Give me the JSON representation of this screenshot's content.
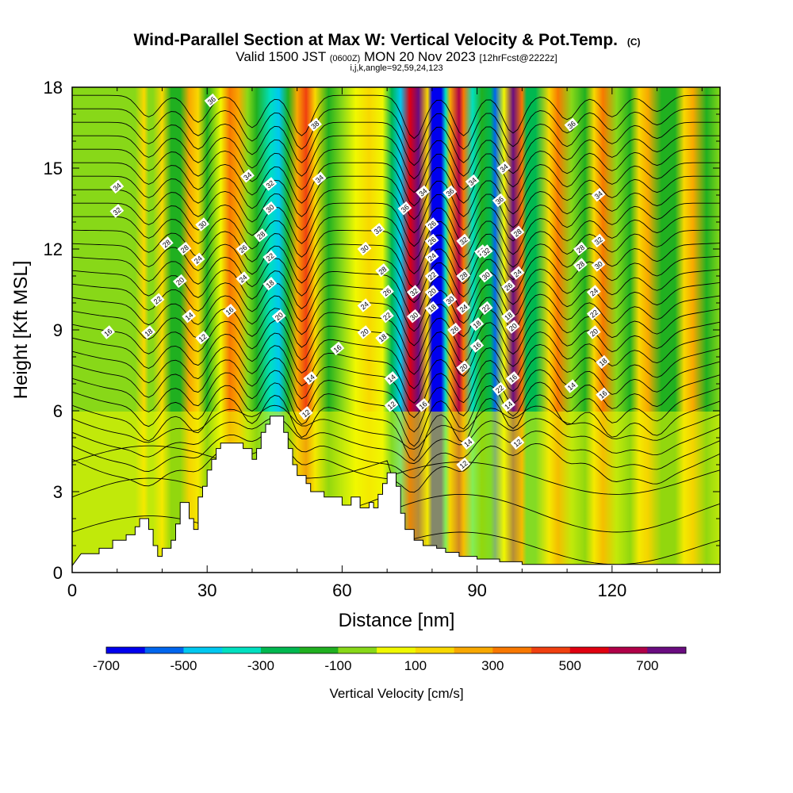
{
  "title": "Wind-Parallel Section at Max W: Vertical Velocity & Pot.Temp.",
  "title_mark": "(C)",
  "subtitle_parts": [
    "Valid 1500 JST",
    "(0600Z)",
    "MON 20 Nov 2023",
    "[12hrFcst@2222z]"
  ],
  "subtitle2": "i,j,k,angle=92,59,24,123",
  "chart_data": {
    "type": "heatmap",
    "xlabel": "Distance [nm]",
    "ylabel": "Height [Kft MSL]",
    "xlim": [
      0,
      144
    ],
    "ylim": [
      0,
      18
    ],
    "xticks": [
      0,
      30,
      60,
      90,
      120
    ],
    "yticks": [
      0,
      3,
      6,
      9,
      12,
      15,
      18
    ],
    "colorbar": {
      "label": "Vertical Velocity [cm/s]",
      "levels": [
        -700,
        -600,
        -500,
        -400,
        -300,
        -200,
        -100,
        0,
        100,
        200,
        300,
        400,
        500,
        600,
        700,
        800
      ],
      "labeled_ticks": [
        -700,
        -500,
        -300,
        -100,
        100,
        300,
        500,
        700
      ],
      "colors": [
        "#0000ee",
        "#0066ee",
        "#00c8f0",
        "#00e0c0",
        "#00b850",
        "#20b020",
        "#88d818",
        "#f0f800",
        "#f8d800",
        "#f8a800",
        "#f87800",
        "#f04010",
        "#e00010",
        "#b00048",
        "#6a0c80"
      ]
    },
    "theta_contours": {
      "variable": "Pot.Temp.",
      "labels": [
        {
          "x": 10,
          "y": 14.3,
          "t": "34"
        },
        {
          "x": 10,
          "y": 13.4,
          "t": "32"
        },
        {
          "x": 8,
          "y": 8.9,
          "t": "16"
        },
        {
          "x": 17,
          "y": 8.9,
          "t": "18"
        },
        {
          "x": 19,
          "y": 10.1,
          "t": "22"
        },
        {
          "x": 24,
          "y": 10.8,
          "t": "20"
        },
        {
          "x": 21,
          "y": 12.2,
          "t": "28"
        },
        {
          "x": 25,
          "y": 12.0,
          "t": "28"
        },
        {
          "x": 26,
          "y": 9.5,
          "t": "14"
        },
        {
          "x": 29,
          "y": 8.7,
          "t": "12"
        },
        {
          "x": 28,
          "y": 11.6,
          "t": "24"
        },
        {
          "x": 29,
          "y": 12.9,
          "t": "30"
        },
        {
          "x": 31,
          "y": 17.5,
          "t": "36"
        },
        {
          "x": 35,
          "y": 9.7,
          "t": "16"
        },
        {
          "x": 38,
          "y": 10.9,
          "t": "24"
        },
        {
          "x": 38,
          "y": 12.0,
          "t": "26"
        },
        {
          "x": 39,
          "y": 14.7,
          "t": "34"
        },
        {
          "x": 42,
          "y": 12.5,
          "t": "28"
        },
        {
          "x": 44,
          "y": 14.4,
          "t": "32"
        },
        {
          "x": 44,
          "y": 13.5,
          "t": "30"
        },
        {
          "x": 44,
          "y": 11.7,
          "t": "22"
        },
        {
          "x": 44,
          "y": 10.7,
          "t": "18"
        },
        {
          "x": 46,
          "y": 9.5,
          "t": "20"
        },
        {
          "x": 54,
          "y": 16.6,
          "t": "38"
        },
        {
          "x": 55,
          "y": 14.6,
          "t": "34"
        },
        {
          "x": 53,
          "y": 7.2,
          "t": "14"
        },
        {
          "x": 52,
          "y": 5.9,
          "t": "12"
        },
        {
          "x": 59,
          "y": 8.3,
          "t": "16"
        },
        {
          "x": 65,
          "y": 12.0,
          "t": "30"
        },
        {
          "x": 65,
          "y": 9.9,
          "t": "24"
        },
        {
          "x": 65,
          "y": 8.9,
          "t": "20"
        },
        {
          "x": 68,
          "y": 12.7,
          "t": "32"
        },
        {
          "x": 69,
          "y": 11.2,
          "t": "28"
        },
        {
          "x": 70,
          "y": 10.4,
          "t": "26"
        },
        {
          "x": 70,
          "y": 9.5,
          "t": "22"
        },
        {
          "x": 69,
          "y": 8.7,
          "t": "18"
        },
        {
          "x": 71,
          "y": 7.2,
          "t": "14"
        },
        {
          "x": 71,
          "y": 6.2,
          "t": "12"
        },
        {
          "x": 74,
          "y": 13.5,
          "t": "36"
        },
        {
          "x": 76,
          "y": 10.4,
          "t": "32"
        },
        {
          "x": 76,
          "y": 9.5,
          "t": "30"
        },
        {
          "x": 78,
          "y": 6.2,
          "t": "16"
        },
        {
          "x": 78,
          "y": 14.1,
          "t": "34"
        },
        {
          "x": 80,
          "y": 12.9,
          "t": "26"
        },
        {
          "x": 80,
          "y": 12.3,
          "t": "26"
        },
        {
          "x": 80,
          "y": 11.7,
          "t": "24"
        },
        {
          "x": 80,
          "y": 11.0,
          "t": "22"
        },
        {
          "x": 80,
          "y": 10.4,
          "t": "20"
        },
        {
          "x": 80,
          "y": 9.8,
          "t": "18"
        },
        {
          "x": 84,
          "y": 14.1,
          "t": "36"
        },
        {
          "x": 84,
          "y": 10.1,
          "t": "30"
        },
        {
          "x": 85,
          "y": 9.0,
          "t": "26"
        },
        {
          "x": 87,
          "y": 12.3,
          "t": "32"
        },
        {
          "x": 87,
          "y": 11.0,
          "t": "28"
        },
        {
          "x": 87,
          "y": 9.8,
          "t": "24"
        },
        {
          "x": 87,
          "y": 7.6,
          "t": "20"
        },
        {
          "x": 88,
          "y": 4.8,
          "t": "14"
        },
        {
          "x": 87,
          "y": 4.0,
          "t": "12"
        },
        {
          "x": 89,
          "y": 14.5,
          "t": "34"
        },
        {
          "x": 90,
          "y": 9.2,
          "t": "18"
        },
        {
          "x": 90,
          "y": 8.4,
          "t": "16"
        },
        {
          "x": 91,
          "y": 11.9,
          "t": "28"
        },
        {
          "x": 92,
          "y": 11.9,
          "t": "32"
        },
        {
          "x": 92,
          "y": 11.0,
          "t": "30"
        },
        {
          "x": 92,
          "y": 9.8,
          "t": "22"
        },
        {
          "x": 95,
          "y": 13.8,
          "t": "36"
        },
        {
          "x": 95,
          "y": 6.8,
          "t": "22"
        },
        {
          "x": 96,
          "y": 15.0,
          "t": "34"
        },
        {
          "x": 97,
          "y": 10.6,
          "t": "26"
        },
        {
          "x": 97,
          "y": 9.5,
          "t": "18"
        },
        {
          "x": 97,
          "y": 6.2,
          "t": "14"
        },
        {
          "x": 99,
          "y": 12.6,
          "t": "28"
        },
        {
          "x": 99,
          "y": 11.1,
          "t": "24"
        },
        {
          "x": 98,
          "y": 9.1,
          "t": "20"
        },
        {
          "x": 98,
          "y": 7.2,
          "t": "16"
        },
        {
          "x": 99,
          "y": 4.8,
          "t": "12"
        },
        {
          "x": 111,
          "y": 16.6,
          "t": "36"
        },
        {
          "x": 111,
          "y": 6.9,
          "t": "14"
        },
        {
          "x": 113,
          "y": 12.0,
          "t": "28"
        },
        {
          "x": 113,
          "y": 11.4,
          "t": "28"
        },
        {
          "x": 117,
          "y": 14.0,
          "t": "34"
        },
        {
          "x": 117,
          "y": 12.3,
          "t": "32"
        },
        {
          "x": 117,
          "y": 11.4,
          "t": "30"
        },
        {
          "x": 116,
          "y": 10.4,
          "t": "24"
        },
        {
          "x": 116,
          "y": 9.6,
          "t": "22"
        },
        {
          "x": 116,
          "y": 8.9,
          "t": "20"
        },
        {
          "x": 118,
          "y": 7.8,
          "t": "18"
        },
        {
          "x": 118,
          "y": 6.6,
          "t": "16"
        }
      ]
    },
    "terrain_kft": [
      [
        0,
        0.25
      ],
      [
        2,
        0.7
      ],
      [
        6,
        0.7
      ],
      [
        6,
        0.9
      ],
      [
        9,
        0.9
      ],
      [
        9,
        1.2
      ],
      [
        12,
        1.2
      ],
      [
        12,
        1.4
      ],
      [
        14,
        1.4
      ],
      [
        14,
        1.7
      ],
      [
        15,
        1.7
      ],
      [
        15,
        2.0
      ],
      [
        17,
        2.0
      ],
      [
        17,
        1.6
      ],
      [
        18,
        1.6
      ],
      [
        18,
        1.0
      ],
      [
        19,
        1.0
      ],
      [
        19,
        0.6
      ],
      [
        20,
        0.6
      ],
      [
        20,
        0.9
      ],
      [
        22,
        0.9
      ],
      [
        22,
        1.2
      ],
      [
        23,
        1.2
      ],
      [
        23,
        1.8
      ],
      [
        24,
        1.8
      ],
      [
        24,
        2.6
      ],
      [
        26,
        2.6
      ],
      [
        26,
        2.0
      ],
      [
        27,
        2.0
      ],
      [
        27,
        1.6
      ],
      [
        28,
        1.6
      ],
      [
        28,
        2.8
      ],
      [
        29,
        2.8
      ],
      [
        29,
        3.2
      ],
      [
        30,
        3.2
      ],
      [
        30,
        3.8
      ],
      [
        31,
        3.8
      ],
      [
        31,
        4.2
      ],
      [
        32,
        4.2
      ],
      [
        32,
        4.6
      ],
      [
        33,
        4.6
      ],
      [
        33,
        4.8
      ],
      [
        38,
        4.8
      ],
      [
        38,
        4.6
      ],
      [
        40,
        4.6
      ],
      [
        40,
        4.2
      ],
      [
        41,
        4.2
      ],
      [
        41,
        4.6
      ],
      [
        42,
        4.6
      ],
      [
        42,
        5.2
      ],
      [
        43,
        5.2
      ],
      [
        43,
        5.5
      ],
      [
        44,
        5.5
      ],
      [
        44,
        5.8
      ],
      [
        47,
        5.8
      ],
      [
        47,
        5.2
      ],
      [
        48,
        5.2
      ],
      [
        48,
        4.6
      ],
      [
        49,
        4.6
      ],
      [
        49,
        4.0
      ],
      [
        50,
        4.0
      ],
      [
        50,
        3.6
      ],
      [
        52,
        3.6
      ],
      [
        52,
        3.3
      ],
      [
        53,
        3.3
      ],
      [
        53,
        3.0
      ],
      [
        56,
        3.0
      ],
      [
        56,
        2.8
      ],
      [
        60,
        2.8
      ],
      [
        60,
        2.5
      ],
      [
        62,
        2.5
      ],
      [
        62,
        2.8
      ],
      [
        64,
        2.8
      ],
      [
        64,
        2.4
      ],
      [
        66,
        2.4
      ],
      [
        66,
        2.6
      ],
      [
        67,
        2.6
      ],
      [
        67,
        2.4
      ],
      [
        68,
        2.4
      ],
      [
        68,
        2.9
      ],
      [
        69,
        2.9
      ],
      [
        69,
        3.3
      ],
      [
        70,
        3.3
      ],
      [
        70,
        3.7
      ],
      [
        72,
        3.7
      ],
      [
        72,
        3.2
      ],
      [
        73,
        3.2
      ],
      [
        73,
        2.2
      ],
      [
        74,
        2.2
      ],
      [
        74,
        1.6
      ],
      [
        76,
        1.6
      ],
      [
        76,
        1.2
      ],
      [
        78,
        1.2
      ],
      [
        78,
        1.0
      ],
      [
        81,
        1.0
      ],
      [
        81,
        0.9
      ],
      [
        83,
        0.9
      ],
      [
        83,
        0.75
      ],
      [
        86,
        0.75
      ],
      [
        86,
        0.6
      ],
      [
        90,
        0.6
      ],
      [
        90,
        0.5
      ],
      [
        95,
        0.5
      ],
      [
        95,
        0.4
      ],
      [
        100,
        0.4
      ],
      [
        100,
        0.3
      ],
      [
        144,
        0.3
      ]
    ]
  }
}
